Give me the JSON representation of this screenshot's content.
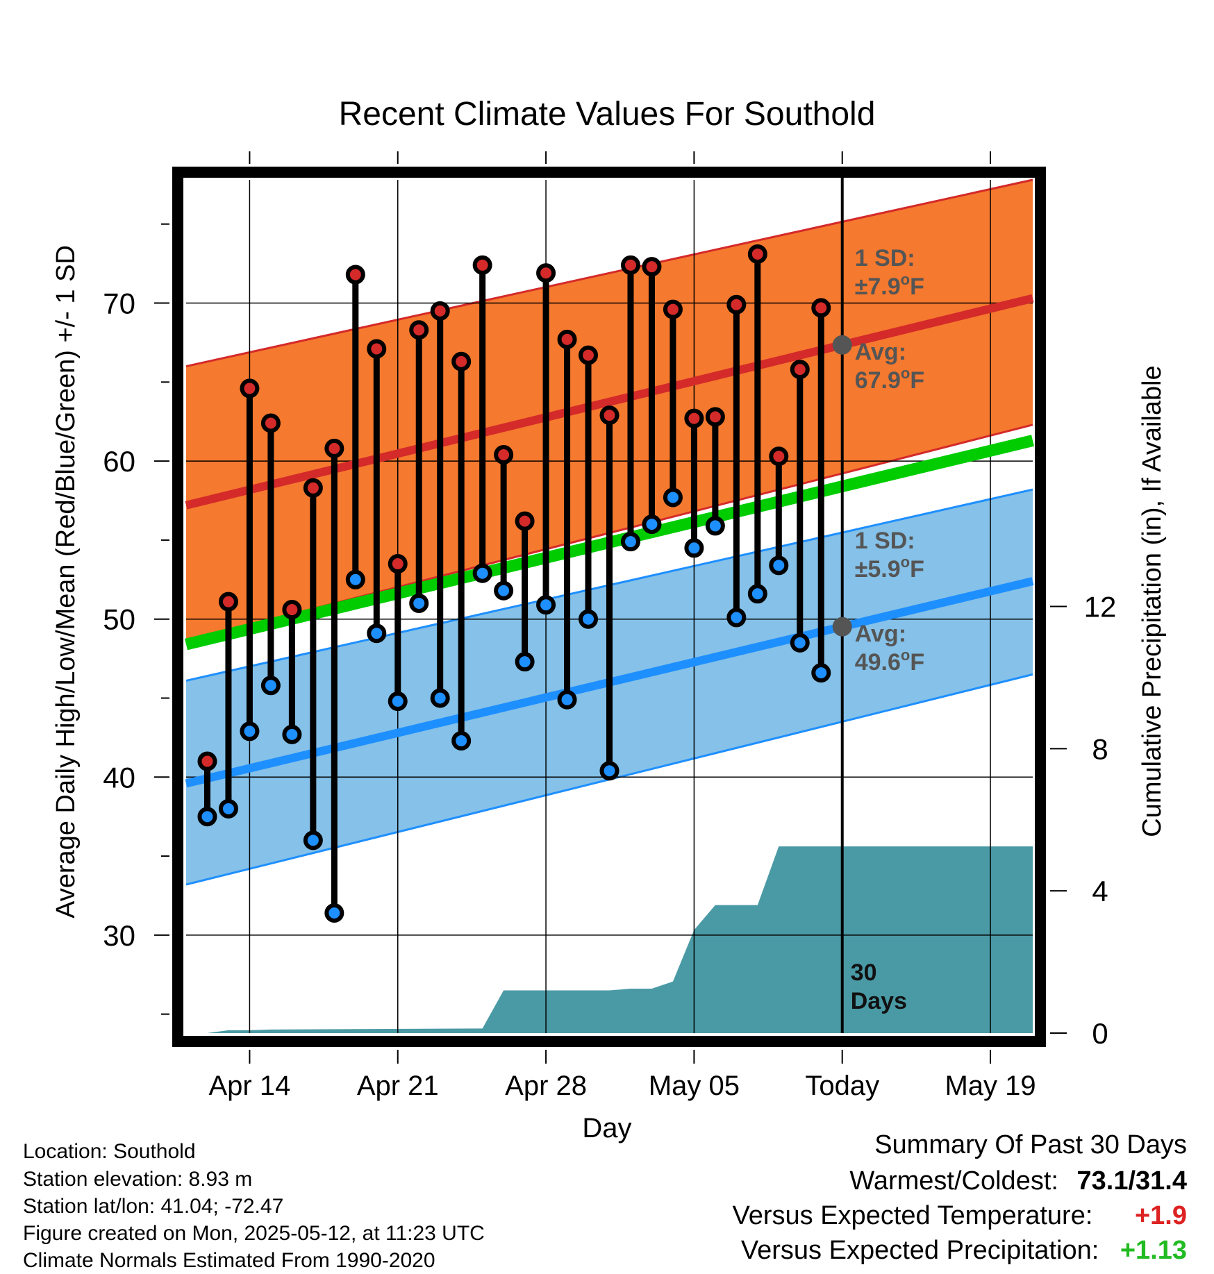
{
  "chart_data": {
    "type": "line",
    "title": "Recent Climate Values For Southold",
    "xlabel": "Day",
    "ylabel": "Average Daily High/Low/Mean (Red/Blue/Green) +/- 1 SD",
    "ylabel_right": "Cumulative Precipitation (in), If Available",
    "x_start": "Apr 11",
    "x_end": "May 21",
    "today": "May 12",
    "ylim": [
      23.8,
      77.8
    ],
    "ylim_right": [
      0,
      24
    ],
    "grid": true,
    "x_ticks": [
      {
        "date": "Apr 14",
        "label": "Apr 14"
      },
      {
        "date": "Apr 21",
        "label": "Apr 21"
      },
      {
        "date": "Apr 28",
        "label": "Apr 28"
      },
      {
        "date": "May 05",
        "label": "May 05"
      },
      {
        "date": "May 12",
        "label": "Today"
      },
      {
        "date": "May 19",
        "label": "May 19"
      }
    ],
    "y_ticks": [
      30,
      40,
      50,
      60,
      70
    ],
    "y_ticks_right": [
      0,
      4,
      8,
      12
    ],
    "normals": {
      "dates": [
        "Apr 11",
        "May 21"
      ],
      "avg_high": [
        57.2,
        70.3
      ],
      "high_upper": [
        66.0,
        77.8
      ],
      "high_lower": [
        48.6,
        62.3
      ],
      "avg_low": [
        39.6,
        52.4
      ],
      "low_upper": [
        46.1,
        58.2
      ],
      "low_lower": [
        33.2,
        46.5
      ],
      "avg_mean": [
        48.4,
        61.3
      ]
    },
    "series": [
      {
        "name": "High",
        "dates": [
          "Apr 12",
          "Apr 13",
          "Apr 14",
          "Apr 15",
          "Apr 16",
          "Apr 17",
          "Apr 18",
          "Apr 19",
          "Apr 20",
          "Apr 21",
          "Apr 22",
          "Apr 23",
          "Apr 24",
          "Apr 25",
          "Apr 26",
          "Apr 27",
          "Apr 28",
          "Apr 29",
          "Apr 30",
          "May 01",
          "May 02",
          "May 03",
          "May 04",
          "May 05",
          "May 06",
          "May 07",
          "May 08",
          "May 09",
          "May 10",
          "May 11"
        ],
        "values": [
          41.0,
          51.1,
          64.6,
          62.4,
          50.6,
          58.3,
          60.8,
          71.8,
          67.1,
          53.5,
          68.3,
          69.5,
          66.3,
          72.4,
          60.4,
          56.2,
          71.9,
          67.7,
          66.7,
          62.9,
          72.4,
          72.3,
          69.6,
          62.7,
          62.8,
          69.9,
          73.1,
          60.3,
          65.8,
          69.7
        ]
      },
      {
        "name": "Low",
        "dates": [
          "Apr 12",
          "Apr 13",
          "Apr 14",
          "Apr 15",
          "Apr 16",
          "Apr 17",
          "Apr 18",
          "Apr 19",
          "Apr 20",
          "Apr 21",
          "Apr 22",
          "Apr 23",
          "Apr 24",
          "Apr 25",
          "Apr 26",
          "Apr 27",
          "Apr 28",
          "Apr 29",
          "Apr 30",
          "May 01",
          "May 02",
          "May 03",
          "May 04",
          "May 05",
          "May 06",
          "May 07",
          "May 08",
          "May 09",
          "May 10",
          "May 11"
        ],
        "values": [
          37.5,
          38.0,
          42.9,
          45.8,
          42.7,
          36.0,
          31.4,
          52.5,
          49.1,
          44.8,
          51.0,
          45.0,
          42.3,
          52.9,
          51.8,
          47.3,
          50.9,
          44.9,
          50.0,
          40.4,
          54.9,
          56.0,
          57.7,
          54.5,
          55.9,
          50.1,
          51.6,
          53.4,
          48.5,
          46.6
        ]
      }
    ],
    "precipitation": {
      "dates": [
        "Apr 11",
        "Apr 12",
        "Apr 13",
        "Apr 14",
        "Apr 15",
        "Apr 25",
        "Apr 26",
        "May 01",
        "May 02",
        "May 03",
        "May 04",
        "May 05",
        "May 06",
        "May 07",
        "May 08",
        "May 09",
        "May 10",
        "May 11",
        "May 12",
        "May 21"
      ],
      "values": [
        0.0,
        0.0,
        0.08,
        0.08,
        0.1,
        0.13,
        1.2,
        1.2,
        1.25,
        1.25,
        1.45,
        2.9,
        3.6,
        3.6,
        3.6,
        5.25,
        5.25,
        5.25,
        5.25,
        5.25
      ]
    },
    "annotations": {
      "high_sd_head": "1 SD:",
      "high_sd_value": "±7.9",
      "high_avg_head": "Avg:",
      "high_avg_value": "67.9",
      "low_sd_head": "1 SD:",
      "low_sd_value": "±5.9",
      "low_avg_head": "Avg:",
      "low_avg_value": "49.6",
      "degree_mark": "o",
      "unit_letter": "F",
      "days_count": "30",
      "days_word": "Days"
    },
    "colors": {
      "high_band": "#f5792e",
      "high_line": "#d42a2a",
      "low_band": "#85c1e8",
      "low_line": "#1e8fff",
      "mean_line": "#00cc00",
      "precip": "#4a9aa5",
      "high_dot": "#d42a2a",
      "low_dot": "#1e8fff",
      "avg_dot": "#555555",
      "annotation_text": "#555555"
    }
  },
  "info": {
    "location": "Location: Southold",
    "elevation": "Station elevation: 8.93 m",
    "latlon": "Station lat/lon: 41.04; -72.47",
    "created": "Figure created on Mon, 2025-05-12, at 11:23 UTC",
    "normals": "Climate Normals Estimated From 1990-2020"
  },
  "summary": {
    "title": "Summary Of Past 30 Days",
    "warmest_label": "Warmest/Coldest:",
    "warmest_value": "73.1/31.4",
    "temp_label": "Versus Expected Temperature:",
    "temp_value": "+1.9",
    "temp_color": "#dd2222",
    "precip_label": "Versus Expected Precipitation:",
    "precip_value": "+1.13",
    "precip_color": "#22bb22"
  }
}
